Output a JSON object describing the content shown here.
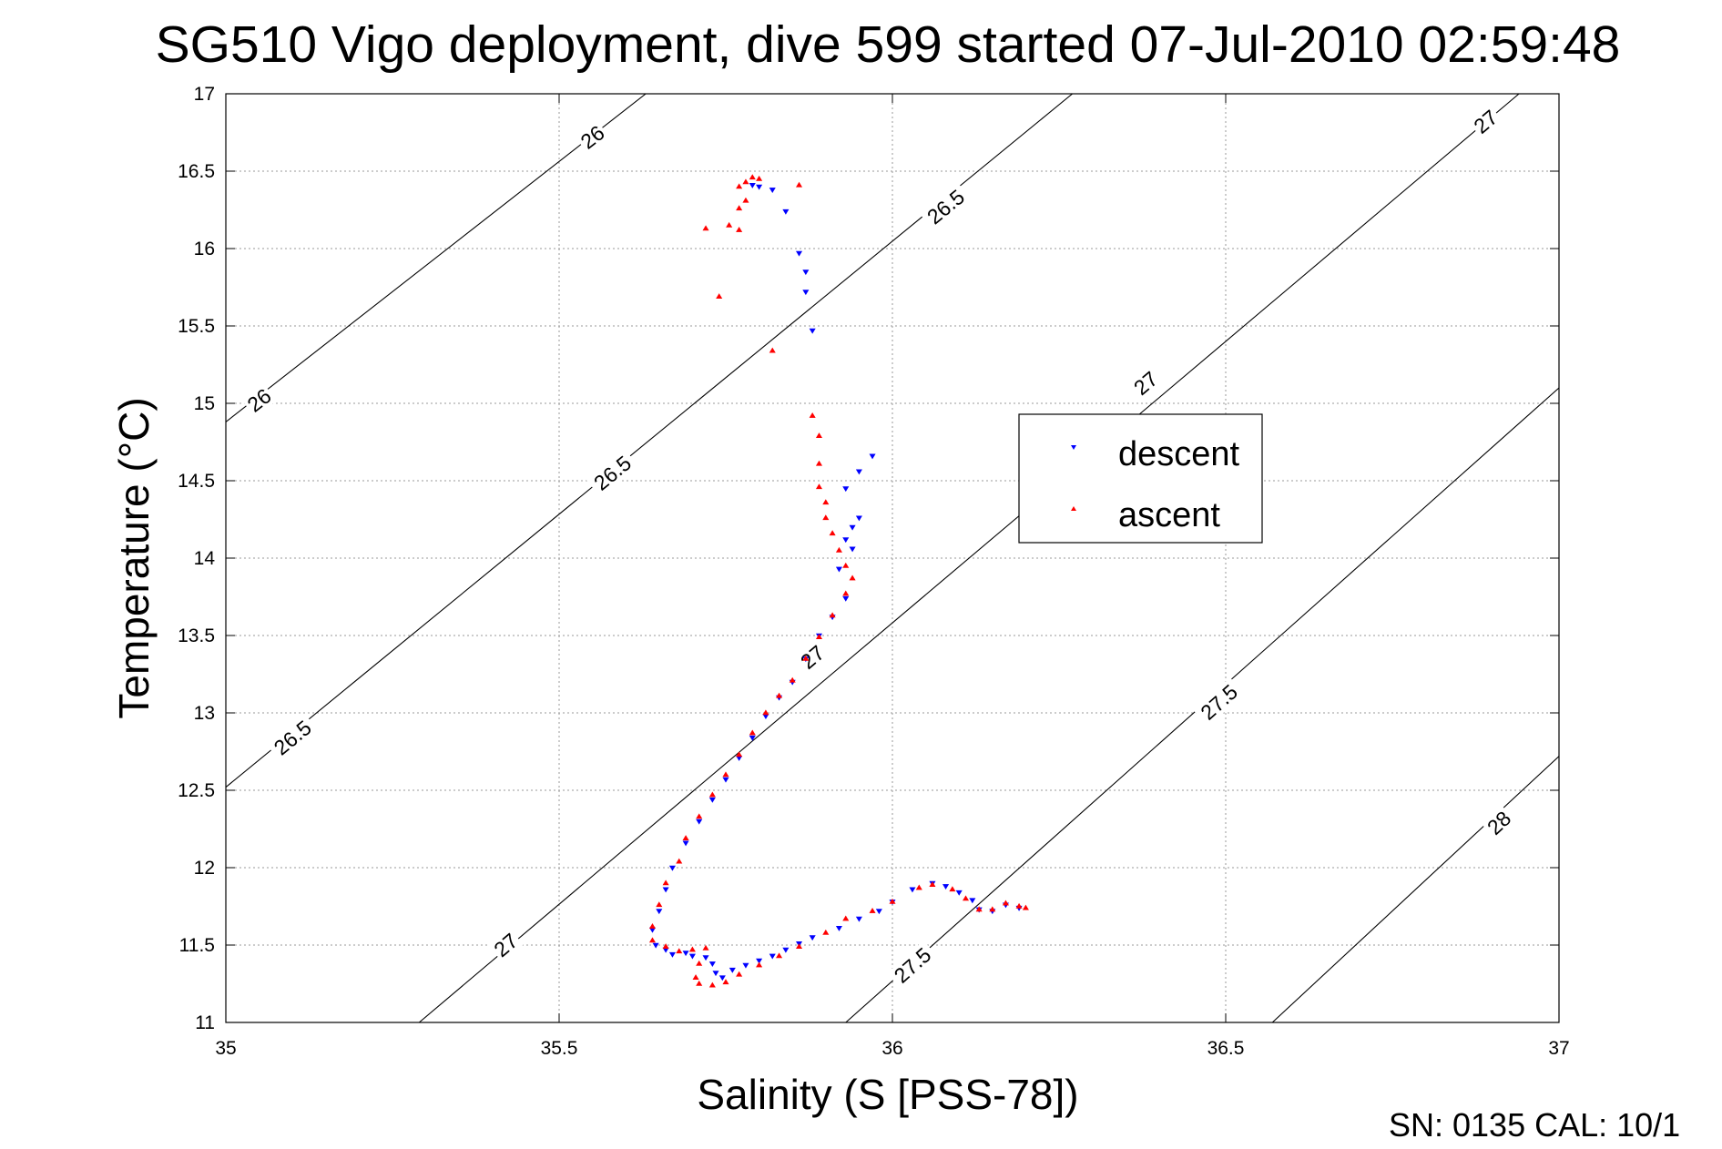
{
  "chart_data": {
    "type": "scatter",
    "title": "SG510 Vigo deployment, dive 599 started 07-Jul-2010 02:59:48",
    "xlabel": "Salinity (S [PSS-78])",
    "ylabel": "Temperature (°C)",
    "xlim": [
      35,
      37
    ],
    "ylim": [
      11,
      17
    ],
    "xticks": [
      "35",
      "35.5",
      "36",
      "36.5",
      "37"
    ],
    "yticks": [
      "11",
      "11.5",
      "12",
      "12.5",
      "13",
      "13.5",
      "14",
      "14.5",
      "15",
      "15.5",
      "16",
      "16.5",
      "17"
    ],
    "grid": true,
    "legend_position": "upper-right-of-center",
    "contours": [
      {
        "label": "26",
        "points": [
          [
            35,
            14.88
          ],
          [
            35.63,
            17
          ]
        ]
      },
      {
        "label": "26.5",
        "points": [
          [
            35,
            12.52
          ],
          [
            36.27,
            17
          ]
        ]
      },
      {
        "label": "27",
        "points": [
          [
            35.29,
            11
          ],
          [
            36.94,
            17
          ]
        ]
      },
      {
        "label": "27.5",
        "points": [
          [
            35.93,
            11
          ],
          [
            37,
            15.1
          ]
        ]
      },
      {
        "label": "28",
        "points": [
          [
            36.57,
            11
          ],
          [
            37,
            12.72
          ]
        ]
      }
    ],
    "contour_labels": [
      {
        "text": "26",
        "s": 35.55,
        "t": 16.72
      },
      {
        "text": "26",
        "s": 35.05,
        "t": 15.02
      },
      {
        "text": "26.5",
        "s": 36.08,
        "t": 16.27
      },
      {
        "text": "26.5",
        "s": 35.58,
        "t": 14.55
      },
      {
        "text": "26.5",
        "s": 35.1,
        "t": 12.84
      },
      {
        "text": "27",
        "s": 36.89,
        "t": 16.82
      },
      {
        "text": "27",
        "s": 36.38,
        "t": 15.13
      },
      {
        "text": "27",
        "s": 35.88,
        "t": 13.36
      },
      {
        "text": "27",
        "s": 35.42,
        "t": 11.5
      },
      {
        "text": "27.5",
        "s": 36.49,
        "t": 13.07
      },
      {
        "text": "27.5",
        "s": 36.03,
        "t": 11.37
      },
      {
        "text": "28",
        "s": 36.91,
        "t": 12.29
      }
    ],
    "series": [
      {
        "name": "descent",
        "color": "#0000ff",
        "marker": "triangle-down",
        "points": [
          [
            35.79,
            16.41
          ],
          [
            35.8,
            16.4
          ],
          [
            35.82,
            16.38
          ],
          [
            35.84,
            16.24
          ],
          [
            35.86,
            15.97
          ],
          [
            35.87,
            15.85
          ],
          [
            35.87,
            15.72
          ],
          [
            35.88,
            15.47
          ],
          [
            35.97,
            14.66
          ],
          [
            35.95,
            14.56
          ],
          [
            35.93,
            14.45
          ],
          [
            35.95,
            14.26
          ],
          [
            35.94,
            14.2
          ],
          [
            35.93,
            14.12
          ],
          [
            35.94,
            14.06
          ],
          [
            35.92,
            13.93
          ],
          [
            35.93,
            13.74
          ],
          [
            35.91,
            13.62
          ],
          [
            35.89,
            13.5
          ],
          [
            35.87,
            13.35
          ],
          [
            35.85,
            13.2
          ],
          [
            35.83,
            13.1
          ],
          [
            35.81,
            12.98
          ],
          [
            35.79,
            12.84
          ],
          [
            35.77,
            12.71
          ],
          [
            35.75,
            12.57
          ],
          [
            35.73,
            12.44
          ],
          [
            35.71,
            12.3
          ],
          [
            35.69,
            12.16
          ],
          [
            35.67,
            12.0
          ],
          [
            35.66,
            11.86
          ],
          [
            35.65,
            11.72
          ],
          [
            35.64,
            11.6
          ],
          [
            35.645,
            11.5
          ],
          [
            35.66,
            11.47
          ],
          [
            35.67,
            11.44
          ],
          [
            35.69,
            11.45
          ],
          [
            35.7,
            11.43
          ],
          [
            35.72,
            11.42
          ],
          [
            35.73,
            11.38
          ],
          [
            35.735,
            11.32
          ],
          [
            35.745,
            11.29
          ],
          [
            35.76,
            11.34
          ],
          [
            35.78,
            11.37
          ],
          [
            35.8,
            11.4
          ],
          [
            35.82,
            11.43
          ],
          [
            35.84,
            11.47
          ],
          [
            35.86,
            11.51
          ],
          [
            35.88,
            11.55
          ],
          [
            35.92,
            11.61
          ],
          [
            35.95,
            11.67
          ],
          [
            35.98,
            11.72
          ],
          [
            36.0,
            11.78
          ],
          [
            36.03,
            11.86
          ],
          [
            36.06,
            11.9
          ],
          [
            36.08,
            11.88
          ],
          [
            36.1,
            11.84
          ],
          [
            36.12,
            11.79
          ],
          [
            36.13,
            11.73
          ],
          [
            36.15,
            11.72
          ],
          [
            36.17,
            11.76
          ],
          [
            36.19,
            11.74
          ]
        ]
      },
      {
        "name": "ascent",
        "color": "#ff0000",
        "marker": "triangle-up",
        "points": [
          [
            35.79,
            16.46
          ],
          [
            35.8,
            16.45
          ],
          [
            35.78,
            16.43
          ],
          [
            35.77,
            16.4
          ],
          [
            35.86,
            16.41
          ],
          [
            35.78,
            16.31
          ],
          [
            35.77,
            16.26
          ],
          [
            35.755,
            16.15
          ],
          [
            35.72,
            16.13
          ],
          [
            35.77,
            16.12
          ],
          [
            35.74,
            15.69
          ],
          [
            35.82,
            15.34
          ],
          [
            35.88,
            14.92
          ],
          [
            35.89,
            14.79
          ],
          [
            35.89,
            14.61
          ],
          [
            35.89,
            14.46
          ],
          [
            35.9,
            14.36
          ],
          [
            35.9,
            14.26
          ],
          [
            35.91,
            14.16
          ],
          [
            35.92,
            14.05
          ],
          [
            35.93,
            13.95
          ],
          [
            35.94,
            13.87
          ],
          [
            35.93,
            13.77
          ],
          [
            35.91,
            13.63
          ],
          [
            35.89,
            13.49
          ],
          [
            35.87,
            13.35
          ],
          [
            35.85,
            13.21
          ],
          [
            35.83,
            13.11
          ],
          [
            35.81,
            13.0
          ],
          [
            35.79,
            12.87
          ],
          [
            35.77,
            12.73
          ],
          [
            35.75,
            12.6
          ],
          [
            35.73,
            12.47
          ],
          [
            35.71,
            12.33
          ],
          [
            35.69,
            12.19
          ],
          [
            35.68,
            12.04
          ],
          [
            35.66,
            11.9
          ],
          [
            35.65,
            11.76
          ],
          [
            35.64,
            11.62
          ],
          [
            35.64,
            11.53
          ],
          [
            35.66,
            11.49
          ],
          [
            35.68,
            11.46
          ],
          [
            35.7,
            11.47
          ],
          [
            35.72,
            11.48
          ],
          [
            35.71,
            11.38
          ],
          [
            35.705,
            11.29
          ],
          [
            35.71,
            11.25
          ],
          [
            35.73,
            11.24
          ],
          [
            35.75,
            11.26
          ],
          [
            35.77,
            11.31
          ],
          [
            35.8,
            11.37
          ],
          [
            35.83,
            11.43
          ],
          [
            35.86,
            11.49
          ],
          [
            35.9,
            11.58
          ],
          [
            35.93,
            11.67
          ],
          [
            35.97,
            11.72
          ],
          [
            36.0,
            11.78
          ],
          [
            36.04,
            11.87
          ],
          [
            36.06,
            11.89
          ],
          [
            36.09,
            11.86
          ],
          [
            36.11,
            11.8
          ],
          [
            36.13,
            11.73
          ],
          [
            36.15,
            11.73
          ],
          [
            36.17,
            11.77
          ],
          [
            36.19,
            11.75
          ],
          [
            36.2,
            11.74
          ]
        ]
      }
    ]
  },
  "footer": {
    "text": "SN: 0135  CAL: 10/1"
  }
}
